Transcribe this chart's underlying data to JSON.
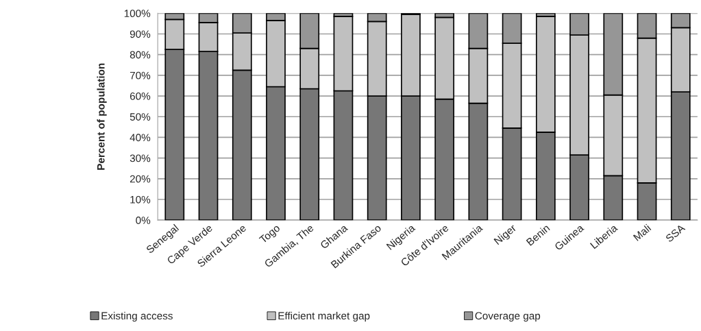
{
  "chart_data": {
    "type": "bar",
    "stacked": true,
    "ylabel": "Percent of population",
    "categories": [
      "Senegal",
      "Cape Verde",
      "Sierra Leone",
      "Togo",
      "Gambia, The",
      "Ghana",
      "Burkina Faso",
      "Nigeria",
      "Côte d'Ivoire",
      "Mauritania",
      "Niger",
      "Benin",
      "Guinea",
      "Liberia",
      "Mali",
      "SSA"
    ],
    "series": [
      {
        "name": "Existing access",
        "color": "#777777",
        "values": [
          82.5,
          81.5,
          72.5,
          64.5,
          63.5,
          62.5,
          60,
          60,
          58.5,
          56.5,
          44.5,
          42.5,
          31.5,
          21.5,
          18,
          62
        ]
      },
      {
        "name": "Efficient market gap",
        "color": "#c0c0c0",
        "values": [
          14.5,
          14,
          18,
          32,
          19.5,
          36,
          36,
          39.5,
          39.5,
          26.5,
          41,
          56,
          58,
          39,
          70,
          31
        ]
      },
      {
        "name": "Coverage gap",
        "color": "#969696",
        "values": [
          3,
          4.5,
          9.5,
          3.5,
          17,
          1.5,
          4,
          0.5,
          2,
          17,
          14.5,
          1.5,
          10.5,
          39.5,
          12,
          7
        ]
      }
    ],
    "ylim": [
      0,
      100
    ],
    "yticks": [
      {
        "value": 0,
        "label": "0%"
      },
      {
        "value": 10,
        "label": "10%"
      },
      {
        "value": 20,
        "label": "20%"
      },
      {
        "value": 30,
        "label": "30%"
      },
      {
        "value": 40,
        "label": "40%"
      },
      {
        "value": 50,
        "label": "50%"
      },
      {
        "value": 60,
        "label": "60%"
      },
      {
        "value": 70,
        "label": "70%"
      },
      {
        "value": 80,
        "label": "80%"
      },
      {
        "value": 90,
        "label": "90%"
      },
      {
        "value": 100,
        "label": "100%"
      }
    ],
    "grid": "y",
    "legend": "bottom"
  }
}
